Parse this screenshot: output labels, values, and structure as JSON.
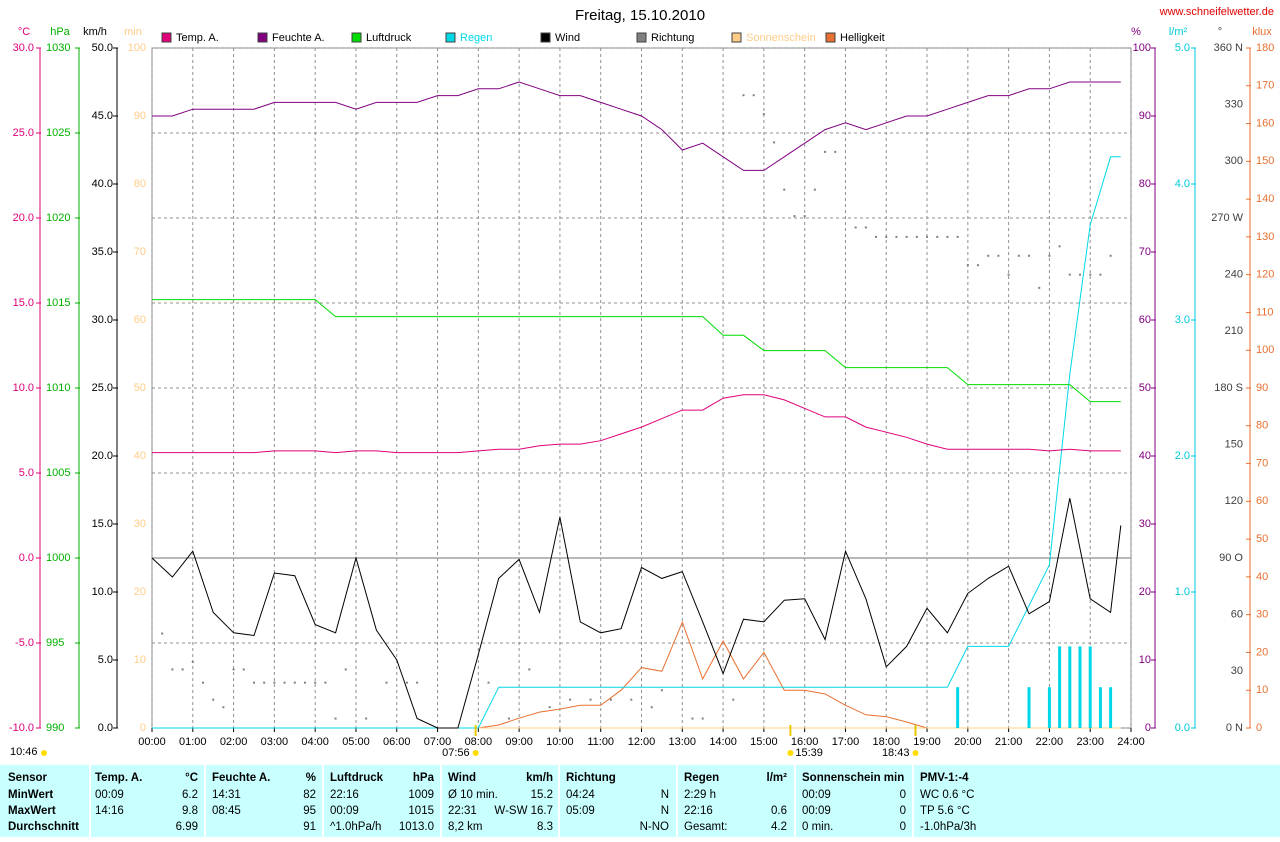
{
  "chart_data": {
    "type": "line",
    "title": "Freitag, 15.10.2010",
    "url": "www.schneifelwetter.de",
    "grid": true,
    "grid_axis": 0,
    "xlim": [
      0,
      24
    ],
    "xticks": [
      {
        "value": 0,
        "label": "00:00"
      },
      {
        "value": 1,
        "label": "01:00"
      },
      {
        "value": 2,
        "label": "02:00"
      },
      {
        "value": 3,
        "label": "03:00"
      },
      {
        "value": 4,
        "label": "04:00"
      },
      {
        "value": 5,
        "label": "05:00"
      },
      {
        "value": 6,
        "label": "06:00"
      },
      {
        "value": 7,
        "label": "07:00"
      },
      {
        "value": 8,
        "label": "08:00"
      },
      {
        "value": 9,
        "label": "09:00"
      },
      {
        "value": 10,
        "label": "10:00"
      },
      {
        "value": 11,
        "label": "11:00"
      },
      {
        "value": 12,
        "label": "12:00"
      },
      {
        "value": 13,
        "label": "13:00"
      },
      {
        "value": 14,
        "label": "14:00"
      },
      {
        "value": 15,
        "label": "15:00"
      },
      {
        "value": 16,
        "label": "16:00"
      },
      {
        "value": 17,
        "label": "17:00"
      },
      {
        "value": 18,
        "label": "18:00"
      },
      {
        "value": 19,
        "label": "19:00"
      },
      {
        "value": 20,
        "label": "20:00"
      },
      {
        "value": 21,
        "label": "21:00"
      },
      {
        "value": 22,
        "label": "22:00"
      },
      {
        "value": 23,
        "label": "23:00"
      },
      {
        "value": 24,
        "label": "24:00"
      }
    ],
    "axes": [
      {
        "label": "°C",
        "color": "#e0007a",
        "ylim": [
          -10,
          30
        ],
        "yticks": [
          {
            "value": -10,
            "label": "-10.0"
          },
          {
            "value": -5,
            "label": "-5.0"
          },
          {
            "value": 0,
            "label": "0.0"
          },
          {
            "value": 5,
            "label": "5.0"
          },
          {
            "value": 10,
            "label": "10.0"
          },
          {
            "value": 15,
            "label": "15.0"
          },
          {
            "value": 20,
            "label": "20.0"
          },
          {
            "value": 25,
            "label": "25.0"
          },
          {
            "value": 30,
            "label": "30.0"
          }
        ]
      },
      {
        "label": "hPa",
        "color": "#00b000",
        "ylim": [
          990,
          1030
        ],
        "yticks": [
          990,
          995,
          1000,
          1005,
          1010,
          1015,
          1020,
          1025,
          1030
        ]
      },
      {
        "label": "km/h",
        "color": "#000000",
        "ylim": [
          0,
          50
        ],
        "yticks": [
          {
            "value": 0,
            "label": "0.0"
          },
          {
            "value": 5,
            "label": "5.0"
          },
          {
            "value": 10,
            "label": "10.0"
          },
          {
            "value": 15,
            "label": "15.0"
          },
          {
            "value": 20,
            "label": "20.0"
          },
          {
            "value": 25,
            "label": "25.0"
          },
          {
            "value": 30,
            "label": "30.0"
          },
          {
            "value": 35,
            "label": "35.0"
          },
          {
            "value": 40,
            "label": "40.0"
          },
          {
            "value": 45,
            "label": "45.0"
          },
          {
            "value": 50,
            "label": "50.0"
          }
        ]
      },
      {
        "label": "min",
        "color": "#ffcc88",
        "ylim": [
          0,
          100
        ],
        "yticks": [
          0,
          10,
          20,
          30,
          40,
          50,
          60,
          70,
          80,
          90,
          100
        ]
      },
      {
        "label": "%",
        "color": "#800080",
        "ylim": [
          0,
          100
        ],
        "yticks": [
          0,
          10,
          20,
          30,
          40,
          50,
          60,
          70,
          80,
          90,
          100
        ]
      },
      {
        "label": "l/m²",
        "color": "#00c8d8",
        "ylim": [
          0,
          5
        ],
        "yticks": [
          {
            "value": 0,
            "label": "0.0"
          },
          {
            "value": 1,
            "label": "1.0"
          },
          {
            "value": 2,
            "label": "2.0"
          },
          {
            "value": 3,
            "label": "3.0"
          },
          {
            "value": 4,
            "label": "4.0"
          },
          {
            "value": 5,
            "label": "5.0"
          }
        ]
      },
      {
        "label": "°",
        "color": "#404040",
        "ylim": [
          0,
          360
        ],
        "yticks": [
          {
            "value": 0,
            "label": "0 N"
          },
          30,
          60,
          {
            "value": 90,
            "label": "90 O"
          },
          120,
          150,
          {
            "value": 180,
            "label": "180 S"
          },
          210,
          240,
          {
            "value": 270,
            "label": "270 W"
          },
          300,
          330,
          {
            "value": 360,
            "label": "360 N"
          }
        ]
      },
      {
        "label": "klux",
        "color": "#e87030",
        "ylim": [
          0,
          180
        ],
        "yticks": [
          0,
          10,
          20,
          30,
          40,
          50,
          60,
          70,
          80,
          90,
          100,
          110,
          120,
          130,
          140,
          150,
          160,
          170,
          180
        ]
      }
    ],
    "x": [
      0,
      0.5,
      1,
      1.5,
      2,
      2.5,
      3,
      3.5,
      4,
      4.5,
      5,
      5.5,
      6,
      6.5,
      7,
      7.5,
      8,
      8.5,
      9,
      9.5,
      10,
      10.5,
      11,
      11.5,
      12,
      12.5,
      13,
      13.5,
      14,
      14.5,
      15,
      15.5,
      16,
      16.5,
      17,
      17.5,
      18,
      18.5,
      19,
      19.5,
      20,
      20.5,
      21,
      21.5,
      22,
      22.5,
      23,
      23.5,
      23.75
    ],
    "series": [
      {
        "name": "Temp. A.",
        "type": "line",
        "color": "#e0007a",
        "axis": 0,
        "values": [
          6.2,
          6.2,
          6.2,
          6.2,
          6.2,
          6.2,
          6.3,
          6.3,
          6.3,
          6.2,
          6.3,
          6.3,
          6.2,
          6.2,
          6.2,
          6.2,
          6.3,
          6.4,
          6.4,
          6.6,
          6.7,
          6.7,
          6.9,
          7.3,
          7.7,
          8.2,
          8.7,
          8.7,
          9.4,
          9.6,
          9.6,
          9.3,
          8.8,
          8.3,
          8.3,
          7.7,
          7.4,
          7.1,
          6.7,
          6.4,
          6.4,
          6.4,
          6.4,
          6.4,
          6.3,
          6.4,
          6.3,
          6.3,
          6.3
        ]
      },
      {
        "name": "Feuchte A.",
        "type": "line",
        "color": "#800080",
        "axis": 4,
        "values": [
          90,
          90,
          91,
          91,
          91,
          91,
          92,
          92,
          92,
          92,
          91,
          92,
          92,
          92,
          93,
          93,
          94,
          94,
          95,
          94,
          93,
          93,
          92,
          91,
          90,
          88,
          85,
          86,
          84,
          82,
          82,
          84,
          86,
          88,
          89,
          88,
          89,
          90,
          90,
          91,
          92,
          93,
          93,
          94,
          94,
          95,
          95,
          95,
          95
        ]
      },
      {
        "name": "Luftdruck",
        "type": "line",
        "color": "#00dd00",
        "axis": 1,
        "values": [
          1015.2,
          1015.2,
          1015.2,
          1015.2,
          1015.2,
          1015.2,
          1015.2,
          1015.2,
          1015.2,
          1014.2,
          1014.2,
          1014.2,
          1014.2,
          1014.2,
          1014.2,
          1014.2,
          1014.2,
          1014.2,
          1014.2,
          1014.2,
          1014.2,
          1014.2,
          1014.2,
          1014.2,
          1014.2,
          1014.2,
          1014.2,
          1014.2,
          1013.1,
          1013.1,
          1012.2,
          1012.2,
          1012.2,
          1012.2,
          1011.2,
          1011.2,
          1011.2,
          1011.2,
          1011.2,
          1011.2,
          1010.2,
          1010.2,
          1010.2,
          1010.2,
          1010.2,
          1010.2,
          1009.2,
          1009.2,
          1009.2
        ]
      },
      {
        "name": "Regen",
        "type": "line",
        "color": "#00d8e8",
        "legend_text_color": "#00d8e8",
        "axis": 5,
        "values": [
          0,
          0,
          0,
          0,
          0,
          0,
          0,
          0,
          0,
          0,
          0,
          0,
          0,
          0,
          0,
          0,
          0,
          0.3,
          0.3,
          0.3,
          0.3,
          0.3,
          0.3,
          0.3,
          0.3,
          0.3,
          0.3,
          0.3,
          0.3,
          0.3,
          0.3,
          0.3,
          0.3,
          0.3,
          0.3,
          0.3,
          0.3,
          0.3,
          0.3,
          0.3,
          0.6,
          0.6,
          0.6,
          0.9,
          1.2,
          2.6,
          3.7,
          4.2,
          4.2
        ]
      },
      {
        "name": "Wind",
        "type": "line",
        "color": "#000000",
        "axis": 2,
        "values": [
          12.5,
          11.1,
          13.0,
          8.5,
          7.0,
          6.8,
          11.4,
          11.2,
          7.6,
          7.0,
          12.5,
          7.2,
          5.0,
          0.7,
          0,
          0,
          5.4,
          11.0,
          12.4,
          8.5,
          15.5,
          7.8,
          7.0,
          7.3,
          11.8,
          11.0,
          11.5,
          7.8,
          4.0,
          8.0,
          7.8,
          9.4,
          9.5,
          6.5,
          13.0,
          9.5,
          4.5,
          6.0,
          8.8,
          7.0,
          9.9,
          11.0,
          11.9,
          8.4,
          9.3,
          16.9,
          9.5,
          8.5,
          14.9
        ]
      },
      {
        "name": "Richtung",
        "type": "scatter",
        "color": "#808080",
        "axis": 6,
        "x": [
          0.25,
          0.5,
          0.75,
          1,
          1.25,
          1.5,
          1.75,
          2,
          2.25,
          2.5,
          2.75,
          3,
          3.25,
          3.5,
          3.75,
          4,
          4.25,
          4.5,
          4.75,
          5.25,
          5.75,
          6.25,
          6.5,
          8.25,
          8.75,
          9.25,
          9.75,
          10.25,
          10.75,
          11.25,
          11.75,
          12.25,
          12.5,
          13.25,
          13.5,
          14.25,
          14.5,
          14.75,
          15,
          15.25,
          15.5,
          15.75,
          16,
          16.25,
          16.5,
          16.75,
          17.25,
          17.5,
          17.75,
          18,
          18.25,
          18.5,
          18.75,
          19,
          19.25,
          19.5,
          19.75,
          20,
          20.25,
          20.5,
          20.75,
          21,
          21.25,
          21.5,
          21.75,
          22,
          22.25,
          22.5,
          22.75,
          23,
          23.25,
          23.5
        ],
        "values": [
          50,
          31,
          31,
          35,
          24,
          15,
          11,
          31,
          31,
          24,
          24,
          24,
          24,
          24,
          24,
          24,
          24,
          5,
          31,
          5,
          24,
          24,
          24,
          24,
          5,
          31,
          11,
          15,
          15,
          15,
          15,
          11,
          20,
          5,
          5,
          15,
          335,
          335,
          325,
          310,
          285,
          271,
          271,
          285,
          305,
          305,
          265,
          265,
          260,
          260,
          260,
          260,
          260,
          260,
          260,
          260,
          260,
          245,
          245,
          250,
          250,
          240,
          250,
          250,
          233,
          250,
          255,
          240,
          240,
          240,
          240,
          250
        ]
      },
      {
        "name": "Sonnenschein",
        "type": "line",
        "color": "#ffcc88",
        "legend_text_color": "#ffcc88",
        "axis": 3,
        "values": [
          0,
          0,
          0,
          0,
          0,
          0,
          0,
          0,
          0,
          0,
          0,
          0,
          0,
          0,
          0,
          0,
          0,
          0,
          0,
          0,
          0,
          0,
          0,
          0,
          0,
          0,
          0,
          0,
          0,
          0,
          0,
          0,
          0,
          0,
          0,
          0,
          0,
          0,
          0,
          0,
          0,
          0,
          0,
          0,
          0,
          0,
          0,
          0,
          0
        ]
      },
      {
        "name": "Helligkeit",
        "type": "line",
        "color": "#e87030",
        "axis": 7,
        "values": [
          null,
          null,
          null,
          null,
          null,
          null,
          null,
          null,
          null,
          null,
          null,
          null,
          null,
          null,
          null,
          null,
          0,
          0.8,
          2.6,
          4.2,
          5,
          6,
          6,
          10,
          16,
          15,
          28,
          13,
          23,
          13,
          20,
          10,
          10,
          9,
          6,
          3.5,
          3,
          1.6,
          0,
          null,
          null,
          null,
          null,
          null,
          null,
          null,
          null,
          null,
          null
        ]
      },
      {
        "type": "bar",
        "color": "#00d8e8",
        "axis": 5,
        "x": [
          19.75,
          21.5,
          22,
          22.25,
          22.5,
          22.75,
          23,
          23.25,
          23.5
        ],
        "values": [
          0.3,
          0.3,
          0.3,
          0.6,
          0.6,
          0.6,
          0.6,
          0.3,
          0.3
        ]
      }
    ],
    "day_length": "10:46",
    "sun_markers": [
      "07:56",
      "15:39",
      "18:43"
    ]
  },
  "table": {
    "headers": [
      [
        "Sensor"
      ],
      [
        "Temp. A.",
        "°C"
      ],
      [
        "Feuchte A.",
        "%"
      ],
      [
        "Luftdruck",
        "hPa"
      ],
      [
        "Wind",
        "km/h"
      ],
      [
        "Richtung"
      ],
      [
        "Regen",
        "l/m²"
      ],
      [
        "Sonnenschein min"
      ],
      [
        "PMV-1:-4"
      ]
    ],
    "rows": [
      {
        "label": "MinWert",
        "cells": [
          [
            "00:09",
            "6.2"
          ],
          [
            "14:31",
            "82"
          ],
          [
            "22:16",
            "1009"
          ],
          [
            "Ø 10 min.",
            "15.2"
          ],
          [
            "04:24",
            "N"
          ],
          [
            "2:29 h"
          ],
          [
            "00:09",
            "0"
          ],
          [
            "WC 0.6 °C"
          ]
        ]
      },
      {
        "label": "MaxWert",
        "cells": [
          [
            "14:16",
            "9.8"
          ],
          [
            "08:45",
            "95"
          ],
          [
            "00:09",
            "1015"
          ],
          [
            "22:31",
            "W-SW 16.7"
          ],
          [
            "05:09",
            "N"
          ],
          [
            "22:16",
            "0.6"
          ],
          [
            "00:09",
            "0"
          ],
          [
            "TP 5.6 °C"
          ]
        ]
      },
      {
        "label": "Durchschnitt",
        "cells": [
          [
            "6.99"
          ],
          [
            "91"
          ],
          [
            "^1.0hPa/h",
            "1013.0"
          ],
          [
            "8,2 km",
            "8.3"
          ],
          [
            "N-NO"
          ],
          [
            "Gesamt:",
            "4.2"
          ],
          [
            "0 min.",
            "0"
          ],
          [
            "-1.0hPa/3h"
          ]
        ]
      }
    ]
  }
}
